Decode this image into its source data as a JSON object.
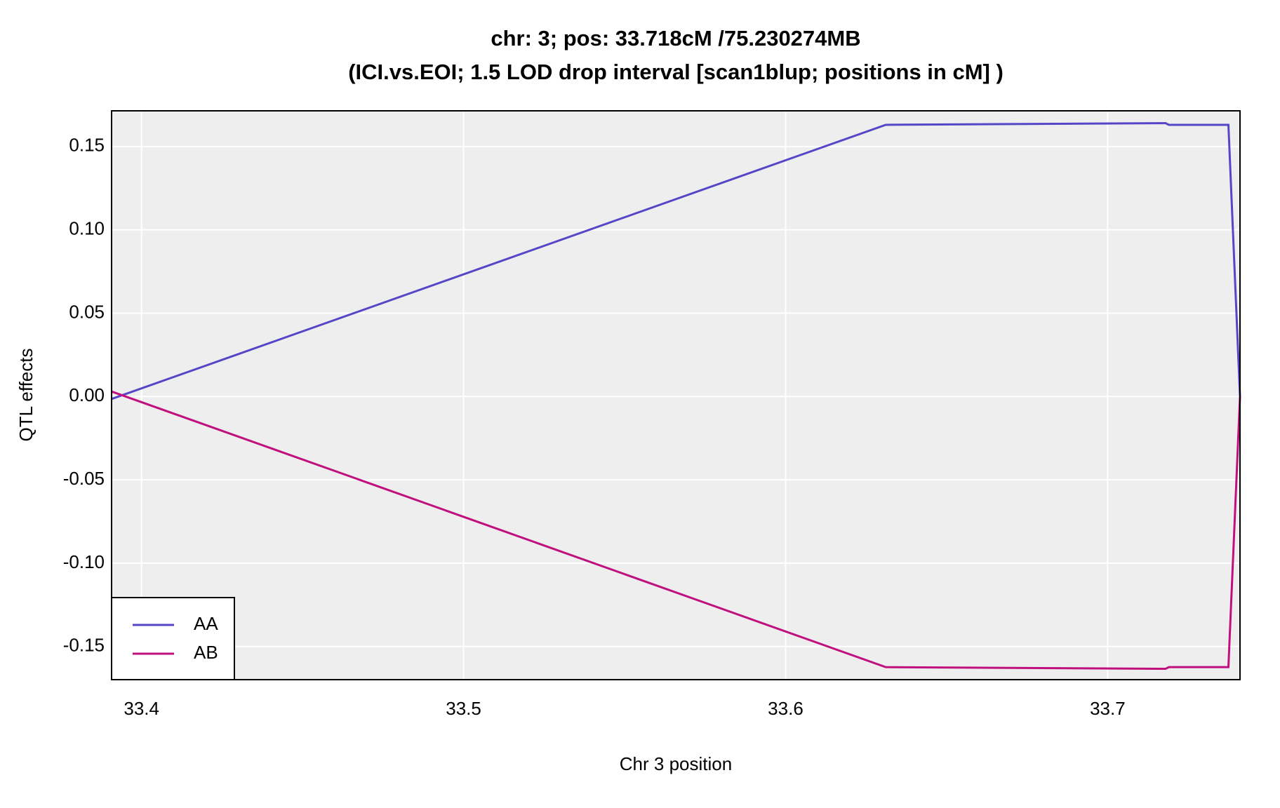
{
  "chart_data": {
    "type": "line",
    "title": "chr: 3; pos: 33.718cM /75.230274MB",
    "subtitle": "(ICI.vs.EOI; 1.5 LOD drop interval [scan1blup; positions in cM] )",
    "x_label": "Chr 3 position",
    "y_label": "QTL effects",
    "x": [
      33.3907,
      33.6311,
      33.718,
      33.719,
      33.7375,
      33.7411
    ],
    "series": [
      {
        "name": "AA",
        "color": "#5546c8",
        "values": [
          -0.0015,
          0.163,
          0.164,
          0.163,
          0.163,
          0
        ]
      },
      {
        "name": "AB",
        "color": "#c0107e",
        "values": [
          0.003,
          -0.1624,
          -0.1634,
          -0.1624,
          -0.1624,
          0
        ]
      }
    ],
    "xlim": [
      33.3907,
      33.7411
    ],
    "ylim": [
      -0.1699,
      0.1714
    ],
    "xticks": [
      33.4,
      33.5,
      33.6,
      33.7
    ],
    "yticks": [
      -0.15,
      {
        "value": -0.1,
        "label": "-0.10"
      },
      -0.05,
      {
        "value": 0,
        "label": "0.00"
      },
      0.05,
      {
        "value": 0.1,
        "label": "0.10"
      },
      0.15
    ],
    "grid": true,
    "legend": "bottom-left"
  }
}
